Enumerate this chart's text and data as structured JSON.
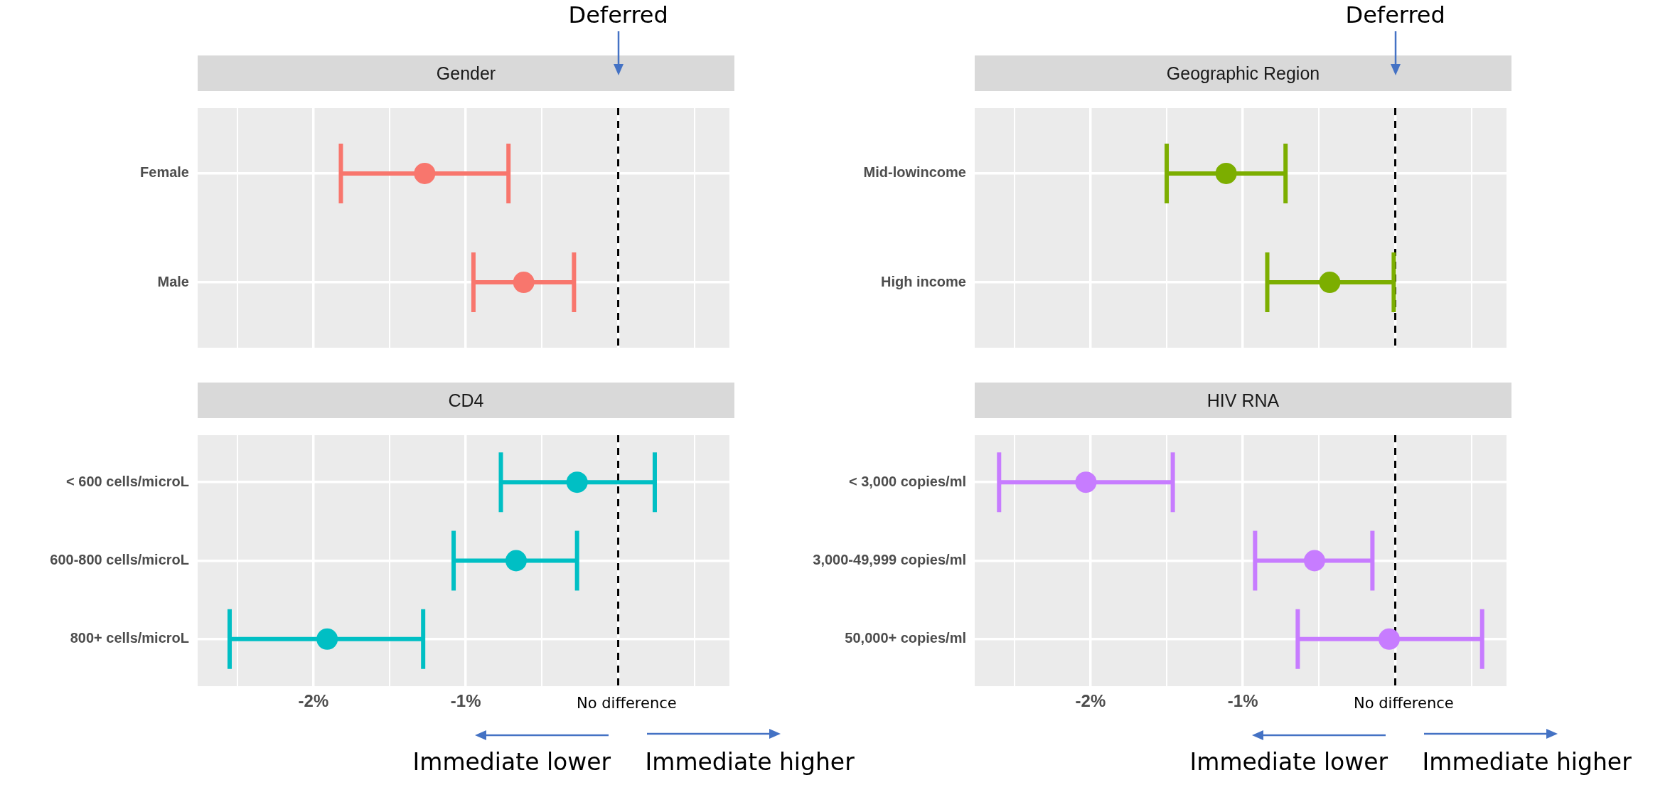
{
  "chart_data": [
    {
      "type": "scatter",
      "title": "Gender",
      "orientation": "horizontal",
      "categories": [
        "Female",
        "Male"
      ],
      "series": [
        {
          "color": "#f8766d",
          "values": [
            -1.27,
            -0.62
          ],
          "errors": [
            [
              -1.82,
              -0.72
            ],
            [
              -0.95,
              -0.29
            ]
          ]
        }
      ],
      "xlim": [
        -2.76,
        0.73
      ],
      "xticks": [
        {
          "value": -2.5,
          "label": null
        },
        {
          "value": -2,
          "label": null
        },
        {
          "value": -1.5,
          "label": null
        },
        {
          "value": -1,
          "label": null
        },
        {
          "value": -0.5,
          "label": null
        },
        {
          "value": 0,
          "label": null
        },
        {
          "value": 0.5,
          "label": null
        }
      ],
      "tick_labels": "y",
      "grid": true,
      "marker": "circle",
      "ref_lines": [
        {
          "axis": "x",
          "value": 0,
          "label": "Deferred",
          "color": "#000000",
          "line_style": "dashed"
        }
      ]
    },
    {
      "type": "scatter",
      "title": "Geographic Region",
      "orientation": "horizontal",
      "categories": [
        "Mid-lowincome",
        "High income"
      ],
      "series": [
        {
          "color": "#7cae00",
          "values": [
            -1.11,
            -0.43
          ],
          "errors": [
            [
              -1.5,
              -0.72
            ],
            [
              -0.84,
              -0.01
            ]
          ]
        }
      ],
      "xlim": [
        -2.76,
        0.73
      ],
      "xticks": [
        {
          "value": -2.5,
          "label": null
        },
        {
          "value": -2,
          "label": null
        },
        {
          "value": -1.5,
          "label": null
        },
        {
          "value": -1,
          "label": null
        },
        {
          "value": -0.5,
          "label": null
        },
        {
          "value": 0,
          "label": null
        },
        {
          "value": 0.5,
          "label": null
        }
      ],
      "tick_labels": "y",
      "grid": true,
      "marker": "circle",
      "ref_lines": [
        {
          "axis": "x",
          "value": 0,
          "label": "Deferred",
          "color": "#000000",
          "line_style": "dashed"
        }
      ]
    },
    {
      "type": "scatter",
      "title": "CD4",
      "orientation": "horizontal",
      "categories": [
        "< 600 cells/microL",
        "600-800 cells/microL",
        "800+ cells/microL"
      ],
      "series": [
        {
          "color": "#00bfc4",
          "values": [
            -0.27,
            -0.67,
            -1.91
          ],
          "errors": [
            [
              -0.77,
              0.24
            ],
            [
              -1.08,
              -0.27
            ],
            [
              -2.55,
              -1.28
            ]
          ]
        }
      ],
      "xlim": [
        -2.76,
        0.73
      ],
      "xticks": [
        {
          "value": -2.5,
          "label": null
        },
        {
          "value": -2,
          "label": "-2%"
        },
        {
          "value": -1.5,
          "label": null
        },
        {
          "value": -1,
          "label": "-1%"
        },
        {
          "value": -0.5,
          "label": null
        },
        {
          "value": 0,
          "label": null
        },
        {
          "value": 0.5,
          "label": null
        }
      ],
      "grid": true,
      "marker": "circle",
      "ref_lines": [
        {
          "axis": "x",
          "value": 0,
          "label": "No difference",
          "color": "#000000",
          "line_style": "dashed"
        }
      ],
      "annotations": [
        "Immediate lower",
        "Immediate higher"
      ]
    },
    {
      "type": "scatter",
      "title": "HIV RNA",
      "orientation": "horizontal",
      "categories": [
        "< 3,000 copies/ml",
        "3,000-49,999 copies/ml",
        "50,000+ copies/ml"
      ],
      "series": [
        {
          "color": "#c77cff",
          "values": [
            -2.03,
            -0.53,
            -0.04
          ],
          "errors": [
            [
              -2.6,
              -1.46
            ],
            [
              -0.92,
              -0.15
            ],
            [
              -0.64,
              0.57
            ]
          ]
        }
      ],
      "xlim": [
        -2.76,
        0.73
      ],
      "xticks": [
        {
          "value": -2.5,
          "label": null
        },
        {
          "value": -2,
          "label": "-2%"
        },
        {
          "value": -1.5,
          "label": null
        },
        {
          "value": -1,
          "label": "-1%"
        },
        {
          "value": -0.5,
          "label": null
        },
        {
          "value": 0,
          "label": null
        },
        {
          "value": 0.5,
          "label": null
        }
      ],
      "grid": true,
      "marker": "circle",
      "ref_lines": [
        {
          "axis": "x",
          "value": 0,
          "label": "No difference",
          "color": "#000000",
          "line_style": "dashed"
        }
      ],
      "annotations": [
        "Immediate lower",
        "Immediate higher"
      ]
    }
  ]
}
